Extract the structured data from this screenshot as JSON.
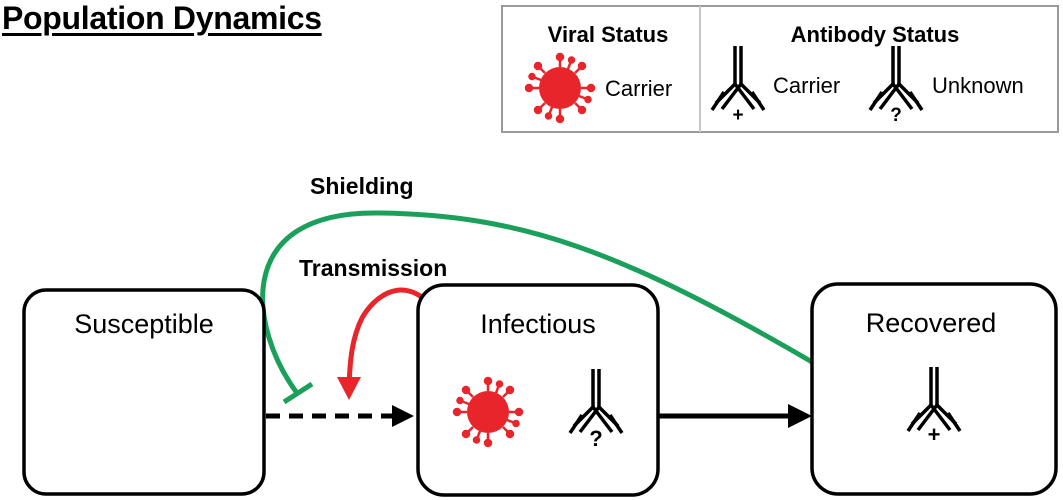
{
  "title": "Population Dynamics",
  "legend": {
    "viral_header": "Viral Status",
    "viral_carrier_label": "Carrier",
    "antibody_header": "Antibody Status",
    "antibody_carrier_label": "Carrier",
    "antibody_unknown_label": "Unknown",
    "plus_mark": "+",
    "question_mark": "?"
  },
  "labels": {
    "shielding": "Shielding",
    "transmission": "Transmission"
  },
  "compartments": {
    "susceptible": "Susceptible",
    "infectious": "Infectious",
    "recovered": "Recovered"
  },
  "marks": {
    "infectious_antibody": "?",
    "recovered_antibody": "+"
  },
  "colors": {
    "virus": "#e8252a",
    "shielding": "#1aa05a",
    "transmission": "#e8252a",
    "stroke": "#000000",
    "legend_border": "#999999"
  },
  "icons": {
    "virus": "virus-icon",
    "antibody": "antibody-icon"
  }
}
